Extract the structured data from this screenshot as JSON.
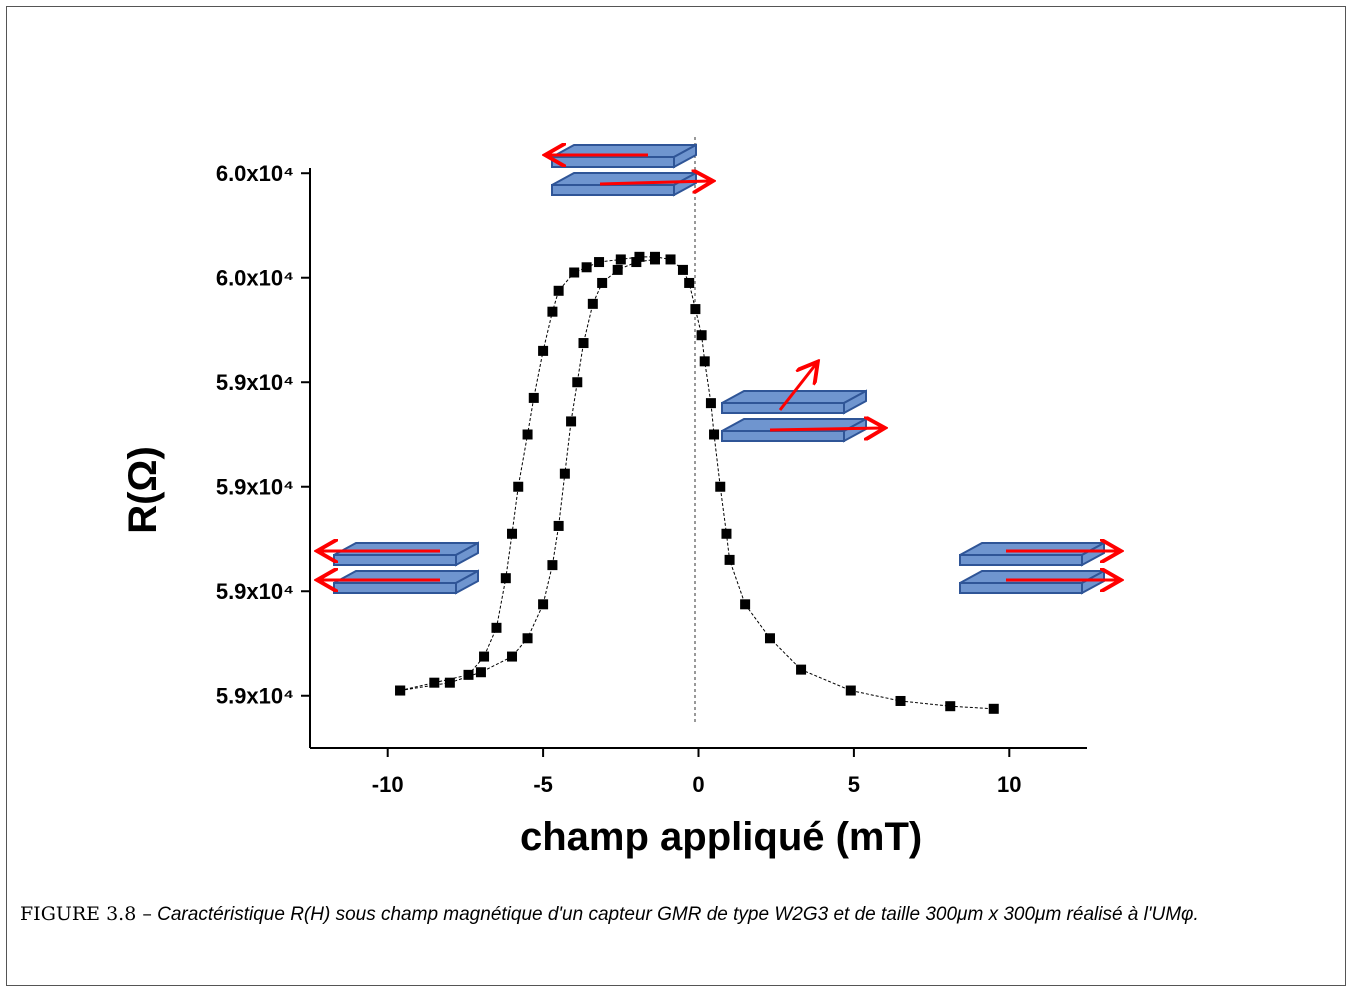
{
  "chart_data": {
    "type": "scatter",
    "xlabel": "champ appliqué (mT)",
    "ylabel": "R(Ω)",
    "xlim": [
      -12.5,
      12.5
    ],
    "xticks": [
      -10,
      -5,
      0,
      5,
      10
    ],
    "ylim": [
      59780,
      60002
    ],
    "yticks": [
      {
        "value": 59800,
        "label": "5.9x10⁴"
      },
      {
        "value": 59840,
        "label": "5.9x10⁴"
      },
      {
        "value": 59880,
        "label": "5.9x10⁴"
      },
      {
        "value": 59920,
        "label": "5.9x10⁴"
      },
      {
        "value": 59960,
        "label": "6.0x10⁴"
      },
      {
        "value": 60000,
        "label": "6.0x10⁴"
      }
    ],
    "series": [
      {
        "color": "#000000",
        "x": [
          -9.6,
          -8.5,
          -7.4,
          -6.9,
          -6.5,
          -6.2,
          -6.0,
          -5.8,
          -5.5,
          -5.3,
          -5.0,
          -4.7,
          -4.5,
          -4.0,
          -3.6,
          -3.2,
          -2.5,
          -1.9,
          -1.4,
          -0.9,
          -0.5,
          -0.3,
          -0.1,
          0.1,
          0.2,
          0.4,
          0.5,
          0.7,
          0.9,
          1.0,
          1.5,
          2.3,
          3.3,
          4.9,
          6.5,
          8.1,
          9.5
        ],
        "values": [
          59802,
          59805,
          59808,
          59815,
          59826,
          59845,
          59862,
          59880,
          59900,
          59914,
          59932,
          59947,
          59955,
          59962,
          59964,
          59966,
          59967,
          59968,
          59968,
          59967,
          59963,
          59958,
          59948,
          59938,
          59928,
          59912,
          59900,
          59880,
          59862,
          59852,
          59835,
          59822,
          59810,
          59802,
          59798,
          59796,
          59795
        ]
      },
      {
        "color": "#000000",
        "x": [
          -9.6,
          -8.0,
          -7.0,
          -6.0,
          -5.5,
          -5.0,
          -4.7,
          -4.5,
          -4.3,
          -4.1,
          -3.9,
          -3.7,
          -3.4,
          -3.1,
          -2.6,
          -2.0,
          -1.4
        ],
        "values": [
          59802,
          59805,
          59809,
          59815,
          59822,
          59835,
          59850,
          59865,
          59885,
          59905,
          59920,
          59935,
          59950,
          59958,
          59963,
          59966,
          59967
        ]
      }
    ]
  },
  "caption": {
    "label": "FIGURE 3.8 –",
    "text": "Caractéristique R(H) sous champ magnétique d'un capteur GMR de type W2G3 et de taille 300μm x 300μm réalisé à l'UMφ."
  }
}
